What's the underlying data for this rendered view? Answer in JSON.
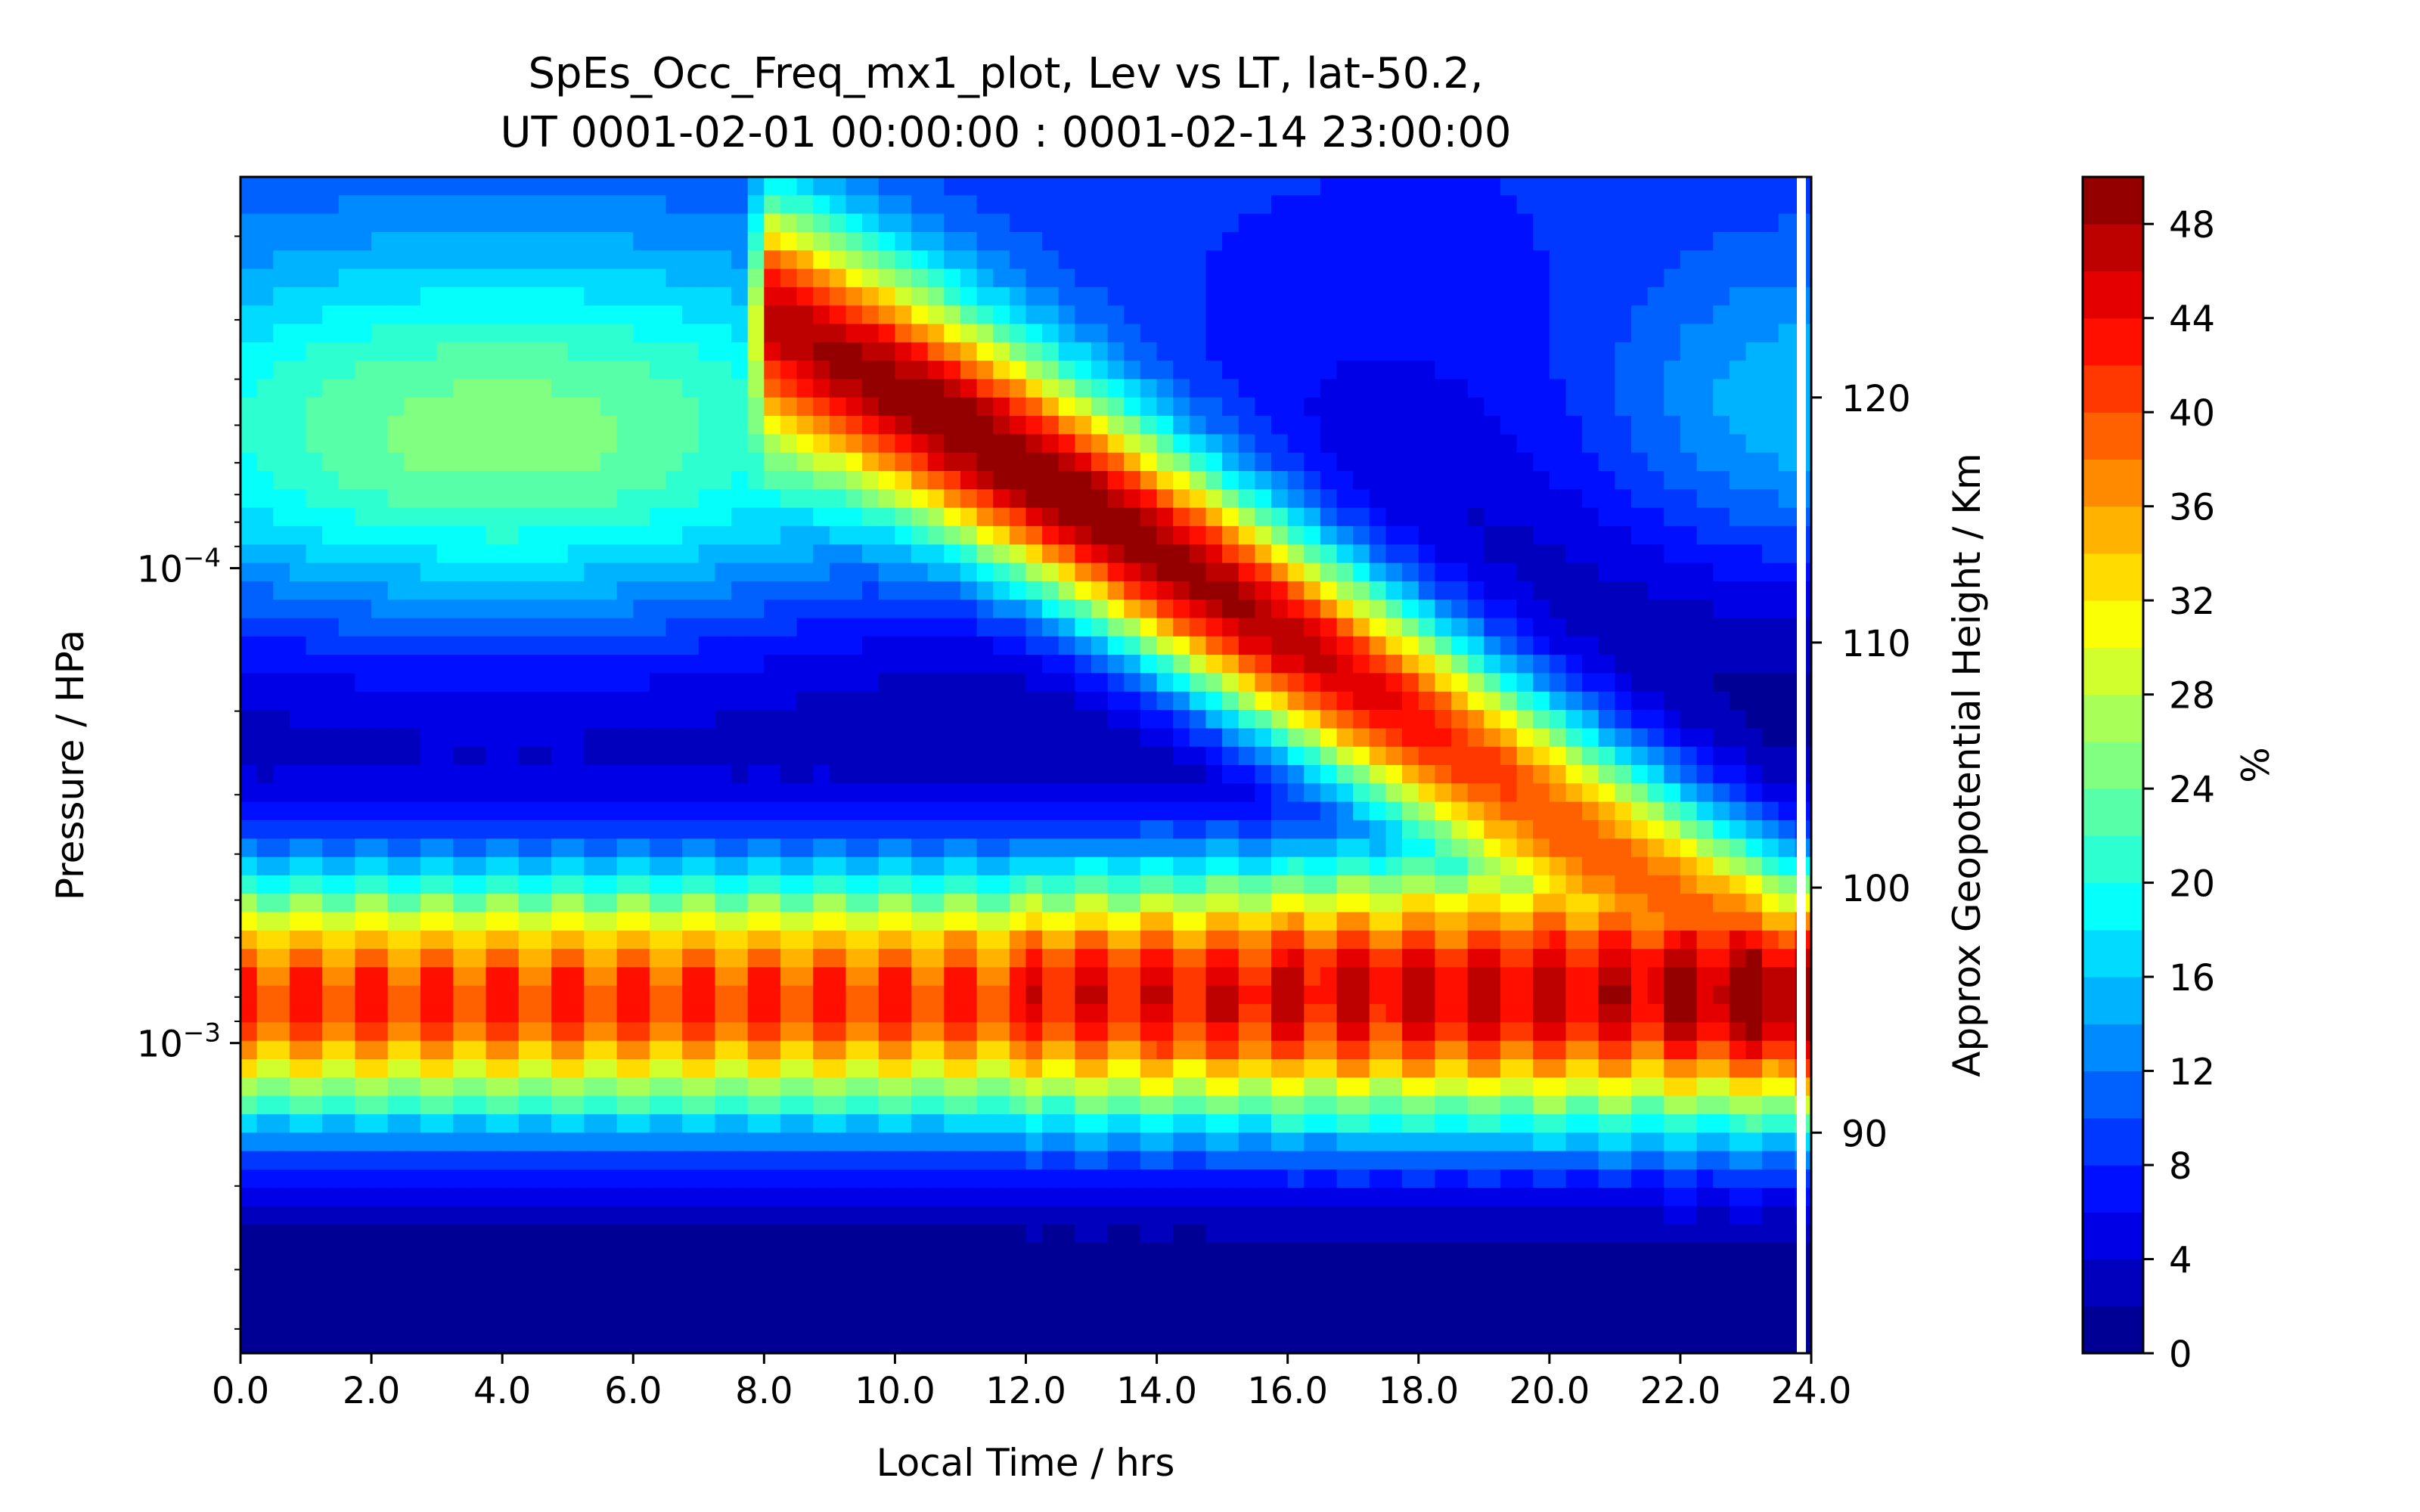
{
  "chart_data": {
    "type": "heatmap",
    "subtype": "filled-contour",
    "title": [
      "SpEs_Occ_Freq_mx1_plot, Lev vs LT, lat-50.2,",
      "UT 0001-02-01 00:00:00 : 0001-02-14 23:00:00"
    ],
    "xlabel": "Local Time / hrs",
    "ylabel": "Pressure / HPa",
    "y2label": "Approx Geopotential Height / Km",
    "colorbar_label": "%",
    "xlim": [
      0,
      24
    ],
    "ylim": [
      0.0045,
      1.5e-05
    ],
    "yscale": "log",
    "xticks": [
      0,
      2,
      4,
      6,
      8,
      10,
      12,
      14,
      16,
      18,
      20,
      22,
      24
    ],
    "xtick_labels": [
      "0.0",
      "2.0",
      "4.0",
      "6.0",
      "8.0",
      "10.0",
      "12.0",
      "14.0",
      "16.0",
      "18.0",
      "20.0",
      "22.0",
      "24.0"
    ],
    "yticks": [
      {
        "value": 0.0001,
        "base": "10",
        "exponent": "−4"
      },
      {
        "value": 0.001,
        "base": "10",
        "exponent": "−3"
      }
    ],
    "y2lim_km": [
      81,
      129
    ],
    "y2ticks": [
      90,
      100,
      110,
      120
    ],
    "colorbar_levels": [
      0,
      50
    ],
    "colorbar_step": 2,
    "colorbar_ticks": [
      0,
      4,
      8,
      12,
      16,
      20,
      24,
      28,
      32,
      36,
      40,
      44,
      48
    ],
    "colormap": "jet",
    "grid": false,
    "description_of_field": {
      "lower_layer_peak_pressure_hPa": 0.0008,
      "lower_layer_peak_percent_early_LT": 44,
      "upper_descending_layer_start": {
        "LT": 8.0,
        "pressure_hPa": 2.8e-05
      },
      "upper_descending_layer_end": {
        "LT": 23.0,
        "pressure_hPa": 0.00058
      },
      "maximum_percent": 49,
      "maximum_location": {
        "LT": 18.0,
        "pressure_hPa": 0.00052
      }
    }
  }
}
